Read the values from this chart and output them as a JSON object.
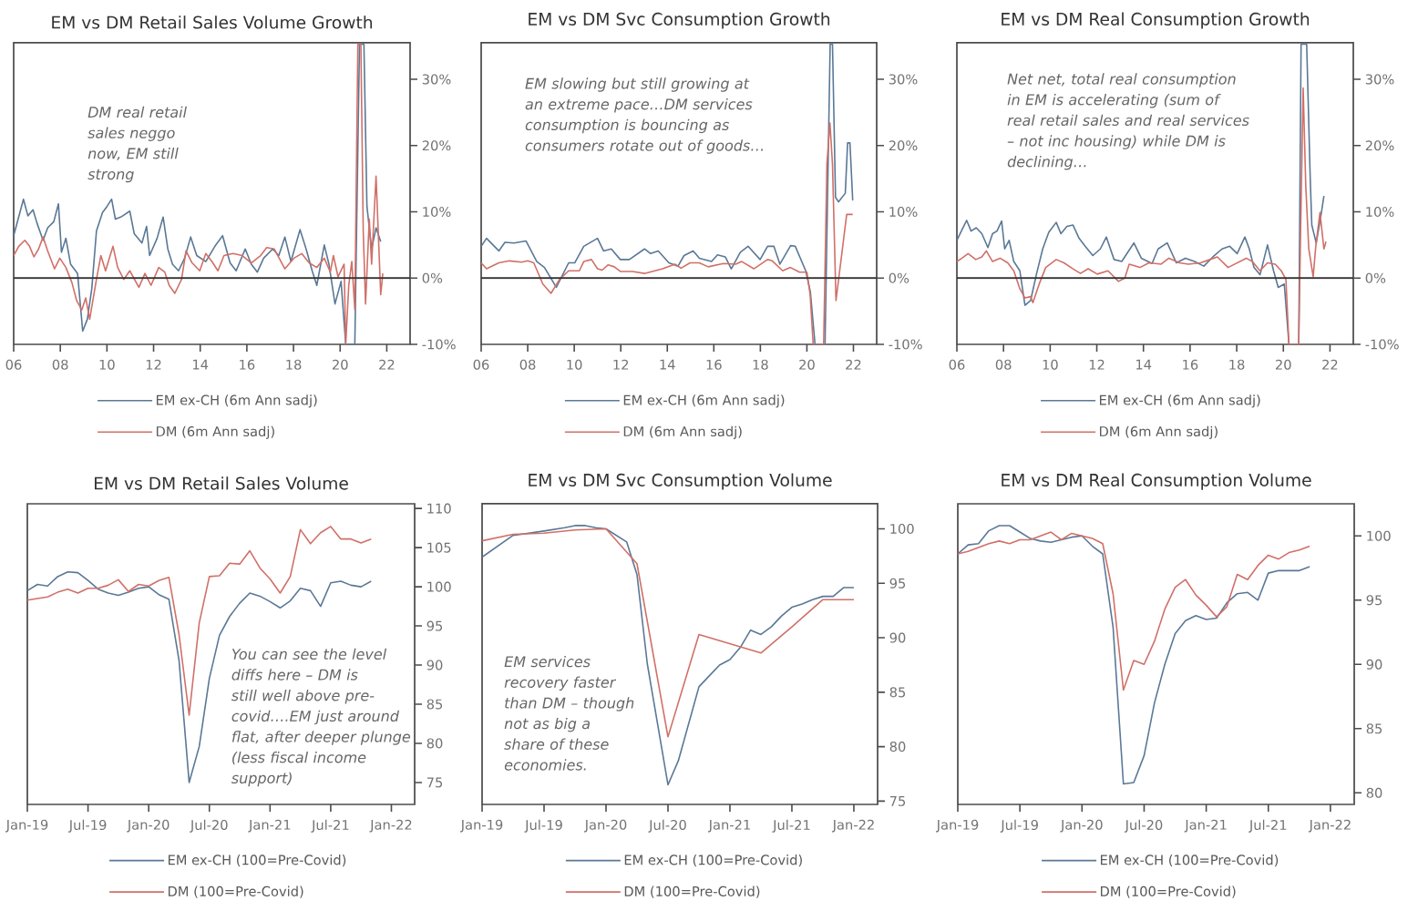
{
  "chart_data": [
    {
      "type": "line",
      "title": "EM vs DM Retail Sales Volume Growth",
      "xlim": [
        2006,
        2023
      ],
      "ylim": [
        -10,
        35.5
      ],
      "xticks": [
        {
          "value": 2006,
          "label": "06"
        },
        {
          "value": 2008,
          "label": "08"
        },
        {
          "value": 2010,
          "label": "10"
        },
        {
          "value": 2012,
          "label": "12"
        },
        {
          "value": 2014,
          "label": "14"
        },
        {
          "value": 2016,
          "label": "16"
        },
        {
          "value": 2018,
          "label": "18"
        },
        {
          "value": 2020,
          "label": "20"
        },
        {
          "value": 2022,
          "label": "22"
        }
      ],
      "yticks": [
        {
          "value": -10,
          "label": "-10%"
        },
        {
          "value": 0,
          "label": "0%"
        },
        {
          "value": 10,
          "label": "10%"
        },
        {
          "value": 20,
          "label": "20%"
        },
        {
          "value": 30,
          "label": "30%"
        }
      ],
      "legend": "bottom",
      "ref_lines": [
        {
          "axis": "y",
          "value": 0,
          "color": "#333333"
        }
      ],
      "annotations": [
        "DM real retail sales neggo now, EM still strong"
      ],
      "series": [
        {
          "name": "EM ex-CH (6m Ann sadj)",
          "color": "#5a7896",
          "x": [
            2006.0,
            2006.42,
            2006.61,
            2006.83,
            2007.0,
            2007.26,
            2007.46,
            2007.72,
            2007.92,
            2008.05,
            2008.24,
            2008.44,
            2008.74,
            2008.96,
            2009.16,
            2009.35,
            2009.55,
            2009.81,
            2010.0,
            2010.2,
            2010.36,
            2010.59,
            2010.98,
            2011.17,
            2011.5,
            2011.7,
            2011.83,
            2012.15,
            2012.41,
            2012.61,
            2012.81,
            2013.07,
            2013.33,
            2013.59,
            2013.85,
            2014.24,
            2014.63,
            2014.96,
            2015.28,
            2015.54,
            2015.93,
            2016.19,
            2016.45,
            2016.72,
            2017.11,
            2017.37,
            2017.63,
            2017.89,
            2018.28,
            2018.54,
            2018.8,
            2019.0,
            2019.32,
            2019.52,
            2019.78,
            2020.04,
            2020.24,
            2020.63,
            2020.83,
            2021.02,
            2021.15,
            2021.35,
            2021.54,
            2021.74
          ],
          "values": [
            6.4,
            11.9,
            9.4,
            10.3,
            8.3,
            5.7,
            7.6,
            8.5,
            11.2,
            3.9,
            6.0,
            2.1,
            0.7,
            -8.0,
            -6.2,
            -1.6,
            7.1,
            9.9,
            10.8,
            11.9,
            8.9,
            9.2,
            10.1,
            6.7,
            5.3,
            7.8,
            3.4,
            6.0,
            9.2,
            4.4,
            2.1,
            1.1,
            3.0,
            6.2,
            3.4,
            2.5,
            4.8,
            6.4,
            2.3,
            1.1,
            4.4,
            2.1,
            0.9,
            3.0,
            4.4,
            3.4,
            6.2,
            2.5,
            7.3,
            4.4,
            1.1,
            -1.1,
            5.0,
            2.1,
            -3.9,
            -0.5,
            -10,
            -10,
            35.3,
            35.3,
            10.8,
            4.4,
            7.6,
            5.5
          ]
        },
        {
          "name": "DM (6m Ann sadj)",
          "color": "#d07068",
          "x": [
            2006.0,
            2006.22,
            2006.48,
            2006.68,
            2006.87,
            2007.07,
            2007.26,
            2007.46,
            2007.75,
            2007.98,
            2008.24,
            2008.5,
            2008.7,
            2008.92,
            2009.09,
            2009.26,
            2009.55,
            2009.74,
            2009.94,
            2010.26,
            2010.46,
            2010.72,
            2010.98,
            2011.37,
            2011.63,
            2011.89,
            2012.22,
            2012.48,
            2012.67,
            2012.91,
            2013.2,
            2013.39,
            2013.65,
            2013.98,
            2014.24,
            2014.5,
            2014.76,
            2015.02,
            2015.41,
            2015.8,
            2016.19,
            2016.59,
            2016.85,
            2017.17,
            2017.63,
            2018.02,
            2018.35,
            2018.67,
            2019.0,
            2019.32,
            2019.58,
            2019.71,
            2019.91,
            2020.17,
            2020.24,
            2020.37,
            2020.5,
            2020.63,
            2020.76,
            2020.89,
            2020.99,
            2021.09,
            2021.25,
            2021.35,
            2021.54,
            2021.74,
            2021.83
          ],
          "values": [
            3.4,
            4.8,
            5.7,
            4.8,
            3.2,
            4.4,
            6.2,
            4.1,
            1.4,
            3.0,
            1.6,
            -0.7,
            -3.4,
            -4.8,
            -3.0,
            -6.2,
            -0.2,
            3.4,
            1.1,
            4.8,
            1.6,
            -0.2,
            1.1,
            -1.4,
            0.7,
            -1.1,
            1.6,
            0.9,
            -1.1,
            -2.3,
            -0.2,
            4.1,
            2.3,
            1.1,
            3.7,
            2.5,
            1.1,
            3.4,
            3.7,
            3.4,
            2.3,
            3.4,
            4.6,
            4.4,
            1.4,
            3.0,
            3.7,
            2.3,
            1.6,
            3.0,
            0.9,
            3.4,
            0.2,
            2.1,
            -10,
            -1.1,
            2.5,
            -4.8,
            35.3,
            35.3,
            7.1,
            -3.9,
            8.9,
            2.1,
            15.4,
            -2.5,
            0.7
          ]
        }
      ]
    },
    {
      "type": "line",
      "title": "EM vs DM Svc Consumption Growth",
      "xlim": [
        2006,
        2023
      ],
      "ylim": [
        -10,
        35.5
      ],
      "xticks": [
        {
          "value": 2006,
          "label": "06"
        },
        {
          "value": 2008,
          "label": "08"
        },
        {
          "value": 2010,
          "label": "10"
        },
        {
          "value": 2012,
          "label": "12"
        },
        {
          "value": 2014,
          "label": "14"
        },
        {
          "value": 2016,
          "label": "16"
        },
        {
          "value": 2018,
          "label": "18"
        },
        {
          "value": 2020,
          "label": "20"
        },
        {
          "value": 2022,
          "label": "22"
        }
      ],
      "yticks": [
        {
          "value": -10,
          "label": "-10%"
        },
        {
          "value": 0,
          "label": "0%"
        },
        {
          "value": 10,
          "label": "10%"
        },
        {
          "value": 20,
          "label": "20%"
        },
        {
          "value": 30,
          "label": "30%"
        }
      ],
      "legend": "bottom",
      "ref_lines": [
        {
          "axis": "y",
          "value": 0,
          "color": "#333333"
        }
      ],
      "annotations": [
        "EM slowing but still growing at an extreme pace…DM services consumption is bouncing as consumers rotate out of goods…"
      ],
      "series": [
        {
          "name": "EM ex-CH (6m Ann sadj)",
          "color": "#5a7896",
          "x": [
            2006.0,
            2006.23,
            2006.76,
            2007.02,
            2007.41,
            2007.93,
            2008.39,
            2008.72,
            2009.23,
            2009.76,
            2010.02,
            2010.41,
            2011.0,
            2011.26,
            2011.59,
            2011.98,
            2012.37,
            2013.02,
            2013.28,
            2013.61,
            2014.07,
            2014.46,
            2014.72,
            2015.11,
            2015.38,
            2015.9,
            2016.16,
            2016.49,
            2016.75,
            2017.14,
            2017.47,
            2017.99,
            2018.31,
            2018.58,
            2018.84,
            2019.3,
            2019.5,
            2019.95,
            2020.15,
            2020.35,
            2020.78,
            2021.0,
            2021.1,
            2021.23,
            2021.36,
            2021.65,
            2021.75,
            2021.85,
            2021.97
          ],
          "values": [
            4.8,
            6.0,
            4.1,
            5.4,
            5.3,
            5.6,
            2.5,
            1.6,
            -1.4,
            2.3,
            2.3,
            4.8,
            6.0,
            4.1,
            4.4,
            2.8,
            2.8,
            4.4,
            3.7,
            4.1,
            2.3,
            1.8,
            3.4,
            4.1,
            3.0,
            2.5,
            3.5,
            3.2,
            1.4,
            3.9,
            4.8,
            2.8,
            4.8,
            4.8,
            2.1,
            4.9,
            4.8,
            1.1,
            -2.1,
            -10,
            -10,
            35.3,
            35.3,
            12.2,
            11.5,
            12.8,
            20.4,
            20.4,
            11.7
          ]
        },
        {
          "name": "DM (6m Ann sadj)",
          "color": "#d07068",
          "x": [
            2006.0,
            2006.23,
            2006.76,
            2007.21,
            2007.74,
            2008.0,
            2008.26,
            2008.65,
            2009.0,
            2009.37,
            2009.76,
            2010.22,
            2010.41,
            2010.74,
            2011.0,
            2011.2,
            2011.46,
            2011.72,
            2011.98,
            2012.5,
            2013.02,
            2013.8,
            2014.33,
            2014.59,
            2014.98,
            2015.37,
            2015.76,
            2016.41,
            2016.94,
            2017.2,
            2017.72,
            2018.31,
            2018.51,
            2018.96,
            2019.29,
            2019.68,
            2020.0,
            2020.14,
            2020.27,
            2020.72,
            2020.86,
            2020.99,
            2021.1,
            2021.25,
            2021.71,
            2021.97
          ],
          "values": [
            2.3,
            1.4,
            2.3,
            2.6,
            2.4,
            2.6,
            2.3,
            -0.9,
            -2.3,
            -0.2,
            1.1,
            1.1,
            2.5,
            2.8,
            1.4,
            1.2,
            2.0,
            1.7,
            1.0,
            1.0,
            0.7,
            1.4,
            2.1,
            1.5,
            2.3,
            2.3,
            1.7,
            2.2,
            2.1,
            2.5,
            1.4,
            2.8,
            2.6,
            1.1,
            1.6,
            0.9,
            0.9,
            -2.5,
            -10,
            -10,
            17.2,
            23.4,
            17.2,
            -3.4,
            9.6,
            9.6
          ]
        }
      ]
    },
    {
      "type": "line",
      "title": "EM vs DM Real Consumption Growth",
      "xlim": [
        2006,
        2023
      ],
      "ylim": [
        -10,
        35.5
      ],
      "xticks": [
        {
          "value": 2006,
          "label": "06"
        },
        {
          "value": 2008,
          "label": "08"
        },
        {
          "value": 2010,
          "label": "10"
        },
        {
          "value": 2012,
          "label": "12"
        },
        {
          "value": 2014,
          "label": "14"
        },
        {
          "value": 2016,
          "label": "16"
        },
        {
          "value": 2018,
          "label": "18"
        },
        {
          "value": 2020,
          "label": "20"
        },
        {
          "value": 2022,
          "label": "22"
        }
      ],
      "yticks": [
        {
          "value": -10,
          "label": "-10%"
        },
        {
          "value": 0,
          "label": "0%"
        },
        {
          "value": 10,
          "label": "10%"
        },
        {
          "value": 20,
          "label": "20%"
        },
        {
          "value": 30,
          "label": "30%"
        }
      ],
      "legend": "bottom",
      "ref_lines": [
        {
          "axis": "y",
          "value": 0,
          "color": "#333333"
        }
      ],
      "annotations": [
        "Net net, total real consumption in EM is accelerating (sum of real retail sales and real services – not inc housing) while DM is declining…"
      ],
      "series": [
        {
          "name": "EM ex-CH (6m Ann sadj)",
          "color": "#5a7896",
          "x": [
            2006.0,
            2006.22,
            2006.42,
            2006.61,
            2006.83,
            2007.07,
            2007.33,
            2007.53,
            2007.72,
            2007.92,
            2008.05,
            2008.24,
            2008.44,
            2008.7,
            2008.92,
            2009.16,
            2009.42,
            2009.68,
            2009.94,
            2010.26,
            2010.46,
            2010.72,
            2010.98,
            2011.24,
            2011.5,
            2011.83,
            2012.15,
            2012.41,
            2012.74,
            2013.07,
            2013.59,
            2013.91,
            2014.37,
            2014.63,
            2015.02,
            2015.41,
            2015.8,
            2016.19,
            2016.59,
            2016.98,
            2017.37,
            2017.7,
            2018.02,
            2018.35,
            2018.54,
            2018.74,
            2019.0,
            2019.32,
            2019.58,
            2019.78,
            2020.04,
            2020.24,
            2020.66,
            2020.76,
            2021.0,
            2021.15,
            2021.22,
            2021.41,
            2021.61,
            2021.74
          ],
          "values": [
            5.7,
            7.3,
            8.7,
            7.1,
            7.6,
            6.7,
            4.6,
            6.7,
            7.1,
            8.6,
            4.4,
            5.7,
            2.5,
            1.1,
            -4.1,
            -3.4,
            0.7,
            4.4,
            6.9,
            8.4,
            6.7,
            7.8,
            8.0,
            6.0,
            4.8,
            3.4,
            4.4,
            6.2,
            2.8,
            2.5,
            5.3,
            3.0,
            2.2,
            4.4,
            5.3,
            2.3,
            3.0,
            2.5,
            1.8,
            3.2,
            4.4,
            4.8,
            3.7,
            6.2,
            4.4,
            1.6,
            0.5,
            5.0,
            1.1,
            -1.4,
            -0.9,
            -10,
            -10,
            35.3,
            35.3,
            15.4,
            8.0,
            5.3,
            9.4,
            12.4
          ]
        },
        {
          "name": "DM (6m Ann sadj)",
          "color": "#d07068",
          "x": [
            2006.0,
            2006.22,
            2006.48,
            2006.81,
            2007.07,
            2007.26,
            2007.53,
            2007.85,
            2008.18,
            2008.44,
            2008.7,
            2008.92,
            2009.16,
            2009.26,
            2009.55,
            2009.81,
            2010.26,
            2010.59,
            2010.98,
            2011.3,
            2011.63,
            2012.02,
            2012.48,
            2012.93,
            2013.2,
            2013.39,
            2013.85,
            2014.24,
            2014.76,
            2015.09,
            2015.54,
            2015.93,
            2016.45,
            2016.85,
            2017.17,
            2017.63,
            2018.02,
            2018.41,
            2018.67,
            2019.0,
            2019.32,
            2019.65,
            2019.91,
            2020.11,
            2020.24,
            2020.66,
            2020.74,
            2020.85,
            2020.96,
            2021.09,
            2021.28,
            2021.39,
            2021.57,
            2021.74,
            2021.83
          ],
          "values": [
            2.5,
            3.0,
            3.7,
            2.8,
            3.2,
            4.1,
            2.5,
            3.0,
            2.3,
            1.1,
            -1.6,
            -3.0,
            -2.8,
            -3.7,
            -0.7,
            1.6,
            2.8,
            2.3,
            1.4,
            0.7,
            1.4,
            0.6,
            1.1,
            -0.5,
            0.0,
            2.1,
            1.6,
            2.3,
            2.1,
            3.0,
            2.3,
            2.1,
            2.3,
            2.8,
            3.2,
            1.6,
            2.3,
            3.0,
            2.5,
            1.1,
            2.3,
            2.1,
            1.1,
            -0.2,
            -10,
            -10,
            7.1,
            28.7,
            14.0,
            4.4,
            0.2,
            4.8,
            9.9,
            4.4,
            5.5
          ]
        }
      ]
    },
    {
      "type": "line",
      "title": "EM vs DM Retail Sales Volume",
      "xlim": [
        "2019-01",
        "2022-03-10"
      ],
      "ylim": [
        72.2,
        110.6
      ],
      "xticks": [
        {
          "value": "2019-01",
          "label": "Jan-19"
        },
        {
          "value": "2019-07",
          "label": "Jul-19"
        },
        {
          "value": "2020-01",
          "label": "Jan-20"
        },
        {
          "value": "2020-07",
          "label": "Jul-20"
        },
        {
          "value": "2021-01",
          "label": "Jan-21"
        },
        {
          "value": "2021-07",
          "label": "Jul-21"
        },
        {
          "value": "2022-01",
          "label": "Jan-22"
        }
      ],
      "yticks": [
        75,
        80,
        85,
        90,
        95,
        100,
        105,
        110
      ],
      "legend": "bottom",
      "annotations": [
        "You can see the level diffs here – DM is still well above pre-covid….EM just around flat, after deeper plunge (less fiscal income support)"
      ],
      "series": [
        {
          "name": "EM ex-CH (100=Pre-Covid)",
          "color": "#5a7896",
          "x": [
            "2019-01",
            "2019-02",
            "2019-03",
            "2019-04",
            "2019-05",
            "2019-06",
            "2019-07",
            "2019-08",
            "2019-09",
            "2019-10",
            "2019-11",
            "2019-12",
            "2020-01",
            "2020-02",
            "2020-03",
            "2020-04",
            "2020-05",
            "2020-06",
            "2020-07",
            "2020-08",
            "2020-09",
            "2020-10",
            "2020-11",
            "2020-12",
            "2021-01",
            "2021-02",
            "2021-03",
            "2021-04",
            "2021-05",
            "2021-06",
            "2021-07",
            "2021-08",
            "2021-09",
            "2021-10",
            "2021-11"
          ],
          "values": [
            99.5,
            100.3,
            100.1,
            101.3,
            101.9,
            101.8,
            100.8,
            99.7,
            99.2,
            98.9,
            99.3,
            99.8,
            100.0,
            99.0,
            98.4,
            90.6,
            75.0,
            79.6,
            88.3,
            93.8,
            96.2,
            97.9,
            99.2,
            98.8,
            98.1,
            97.3,
            98.2,
            99.8,
            99.5,
            97.5,
            100.5,
            100.7,
            100.2,
            100.0,
            100.7
          ]
        },
        {
          "name": "DM (100=Pre-Covid)",
          "color": "#d07068",
          "x": [
            "2019-01",
            "2019-02",
            "2019-03",
            "2019-04",
            "2019-05",
            "2019-06",
            "2019-07",
            "2019-08",
            "2019-09",
            "2019-10",
            "2019-11",
            "2019-12",
            "2020-01",
            "2020-02",
            "2020-03",
            "2020-04",
            "2020-05",
            "2020-06",
            "2020-07",
            "2020-08",
            "2020-09",
            "2020-10",
            "2020-11",
            "2020-12",
            "2021-01",
            "2021-02",
            "2021-03",
            "2021-04",
            "2021-05",
            "2021-06",
            "2021-07",
            "2021-08",
            "2021-09",
            "2021-10",
            "2021-11"
          ],
          "values": [
            98.3,
            98.5,
            98.7,
            99.3,
            99.7,
            99.2,
            99.8,
            99.8,
            100.2,
            100.9,
            99.4,
            100.3,
            100.1,
            100.8,
            101.2,
            93.9,
            83.6,
            95.4,
            101.3,
            101.4,
            103.0,
            102.9,
            104.6,
            102.4,
            101.0,
            99.2,
            101.3,
            107.3,
            105.5,
            106.9,
            107.7,
            106.1,
            106.1,
            105.6,
            106.1
          ]
        }
      ]
    },
    {
      "type": "line",
      "title": "EM vs DM Svc Consumption Volume",
      "xlim": [
        "2019-01",
        "2022-03-10"
      ],
      "ylim": [
        74.7,
        102.3
      ],
      "xticks": [
        {
          "value": "2019-01",
          "label": "Jan-19"
        },
        {
          "value": "2019-07",
          "label": "Jul-19"
        },
        {
          "value": "2020-01",
          "label": "Jan-20"
        },
        {
          "value": "2020-07",
          "label": "Jul-20"
        },
        {
          "value": "2021-01",
          "label": "Jan-21"
        },
        {
          "value": "2021-07",
          "label": "Jul-21"
        },
        {
          "value": "2022-01",
          "label": "Jan-22"
        }
      ],
      "yticks": [
        75,
        80,
        85,
        90,
        95,
        100
      ],
      "legend": "bottom",
      "annotations": [
        "EM services recovery faster than DM – though not as big a share of these economies."
      ],
      "series": [
        {
          "name": "EM ex-CH (100=Pre-Covid)",
          "color": "#5a7896",
          "x": [
            "2019-01",
            "2019-04",
            "2019-07",
            "2019-09",
            "2019-10",
            "2019-11",
            "2019-12",
            "2020-01",
            "2020-03",
            "2020-04",
            "2020-05",
            "2020-07",
            "2020-08",
            "2020-10",
            "2020-11",
            "2020-12",
            "2021-01",
            "2021-02",
            "2021-03",
            "2021-04",
            "2021-05",
            "2021-06",
            "2021-07",
            "2021-08",
            "2021-09",
            "2021-10",
            "2021-11",
            "2021-12",
            "2022-01"
          ],
          "values": [
            97.4,
            99.4,
            99.8,
            100.1,
            100.3,
            100.3,
            100.1,
            100.0,
            98.8,
            95.8,
            87.6,
            76.5,
            78.7,
            85.5,
            86.5,
            87.5,
            88.0,
            89.1,
            90.7,
            90.3,
            91.0,
            92.0,
            92.8,
            93.1,
            93.5,
            93.8,
            93.8,
            94.6,
            94.6
          ]
        },
        {
          "name": "DM (100=Pre-Covid)",
          "color": "#d07068",
          "x": [
            "2019-01",
            "2019-04",
            "2019-07",
            "2019-10",
            "2020-01",
            "2020-04",
            "2020-07",
            "2020-10",
            "2021-04",
            "2021-07",
            "2021-10",
            "2022-01"
          ],
          "values": [
            98.9,
            99.5,
            99.6,
            99.9,
            100.0,
            96.8,
            80.9,
            90.3,
            88.6,
            91.0,
            93.5,
            93.5
          ]
        }
      ]
    },
    {
      "type": "line",
      "title": "EM vs DM Real Consumption Volume",
      "xlim": [
        "2019-01",
        "2022-03-10"
      ],
      "ylim": [
        79.1,
        102.5
      ],
      "xticks": [
        {
          "value": "2019-01",
          "label": "Jan-19"
        },
        {
          "value": "2019-07",
          "label": "Jul-19"
        },
        {
          "value": "2020-01",
          "label": "Jan-20"
        },
        {
          "value": "2020-07",
          "label": "Jul-20"
        },
        {
          "value": "2021-01",
          "label": "Jan-21"
        },
        {
          "value": "2021-07",
          "label": "Jul-21"
        },
        {
          "value": "2022-01",
          "label": "Jan-22"
        }
      ],
      "yticks": [
        80,
        85,
        90,
        95,
        100
      ],
      "legend": "bottom",
      "series": [
        {
          "name": "EM ex-CH (100=Pre-Covid)",
          "color": "#5a7896",
          "x": [
            "2019-01",
            "2019-02",
            "2019-03",
            "2019-04",
            "2019-05",
            "2019-06",
            "2019-07",
            "2019-08",
            "2019-09",
            "2019-10",
            "2019-11",
            "2019-12",
            "2020-01",
            "2020-02",
            "2020-03",
            "2020-04",
            "2020-05",
            "2020-06",
            "2020-07",
            "2020-08",
            "2020-09",
            "2020-10",
            "2020-11",
            "2020-12",
            "2021-01",
            "2021-02",
            "2021-03",
            "2021-04",
            "2021-05",
            "2021-06",
            "2021-07",
            "2021-08",
            "2021-09",
            "2021-10",
            "2021-11"
          ],
          "values": [
            98.6,
            99.3,
            99.4,
            100.4,
            100.8,
            100.8,
            100.3,
            99.8,
            99.6,
            99.5,
            99.7,
            99.9,
            100.0,
            99.2,
            98.6,
            92.9,
            80.7,
            80.8,
            82.9,
            87.0,
            90.0,
            92.4,
            93.4,
            93.8,
            93.5,
            93.6,
            94.8,
            95.5,
            95.6,
            95.0,
            97.1,
            97.3,
            97.3,
            97.3,
            97.6
          ]
        },
        {
          "name": "DM (100=Pre-Covid)",
          "color": "#d07068",
          "x": [
            "2019-01",
            "2019-02",
            "2019-03",
            "2019-04",
            "2019-05",
            "2019-06",
            "2019-07",
            "2019-08",
            "2019-09",
            "2019-10",
            "2019-11",
            "2019-12",
            "2020-01",
            "2020-02",
            "2020-03",
            "2020-04",
            "2020-05",
            "2020-06",
            "2020-07",
            "2020-08",
            "2020-09",
            "2020-10",
            "2020-11",
            "2020-12",
            "2021-01",
            "2021-02",
            "2021-03",
            "2021-04",
            "2021-05",
            "2021-06",
            "2021-07",
            "2021-08",
            "2021-09",
            "2021-10",
            "2021-11"
          ],
          "values": [
            98.6,
            98.8,
            99.1,
            99.4,
            99.6,
            99.4,
            99.7,
            99.7,
            100.0,
            100.3,
            99.7,
            100.2,
            100.0,
            99.8,
            99.4,
            95.5,
            88.0,
            90.3,
            90.0,
            91.8,
            94.3,
            96.0,
            96.6,
            95.4,
            94.6,
            93.7,
            94.5,
            97.0,
            96.6,
            97.7,
            98.5,
            98.2,
            98.7,
            98.9,
            99.2
          ]
        }
      ]
    }
  ]
}
